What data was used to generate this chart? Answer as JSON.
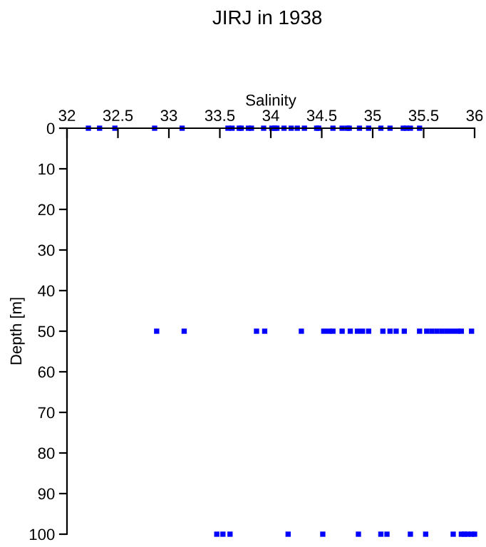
{
  "chart_data": {
    "type": "scatter",
    "title": "JIRJ in 1938",
    "xlabel": "Salinity",
    "ylabel": "Depth [m]",
    "series": [
      {
        "color": "#0000ff",
        "x": [
          32.21,
          32.32,
          32.47,
          32.86,
          33.13,
          33.58,
          33.62,
          33.69,
          33.71,
          33.78,
          33.81,
          33.93,
          34.01,
          34.04,
          34.06,
          34.13,
          34.2,
          34.26,
          34.33,
          34.45,
          34.47,
          34.61,
          34.7,
          34.75,
          34.77,
          34.87,
          34.96,
          35.08,
          35.17,
          35.3,
          35.33,
          35.37,
          35.46
        ],
        "values": [
          0,
          0,
          0,
          0,
          0,
          0,
          0,
          0,
          0,
          0,
          0,
          0,
          0,
          0,
          0,
          0,
          0,
          0,
          0,
          0,
          0,
          0,
          0,
          0,
          0,
          0,
          0,
          0,
          0,
          0,
          0,
          0,
          0
        ]
      },
      {
        "color": "#0000ff",
        "x": [
          32.88,
          33.15,
          33.86,
          33.94,
          34.3,
          34.52,
          34.57,
          34.61,
          34.7,
          34.78,
          34.85,
          34.9,
          34.96,
          35.1,
          35.17,
          35.23,
          35.31,
          35.46,
          35.53,
          35.58,
          35.63,
          35.68,
          35.73,
          35.78,
          35.83,
          35.87,
          35.97
        ],
        "values": [
          50,
          50,
          50,
          50,
          50,
          50,
          50,
          50,
          50,
          50,
          50,
          50,
          50,
          50,
          50,
          50,
          50,
          50,
          50,
          50,
          50,
          50,
          50,
          50,
          50,
          50,
          50
        ]
      },
      {
        "color": "#0000ff",
        "x": [
          33.47,
          33.53,
          33.6,
          34.17,
          34.51,
          34.86,
          35.08,
          35.14,
          35.37,
          35.52,
          35.79,
          35.87,
          35.9,
          35.93,
          35.97,
          36.0
        ],
        "values": [
          100,
          100,
          100,
          100,
          100,
          100,
          100,
          100,
          100,
          100,
          100,
          100,
          100,
          100,
          100,
          100
        ]
      }
    ],
    "marker": "square",
    "xlim": [
      32,
      36
    ],
    "xticks": [
      32,
      32.5,
      33,
      33.5,
      34,
      34.5,
      35,
      35.5,
      36
    ],
    "ylim": [
      100,
      0
    ],
    "yticks": [
      0,
      10,
      20,
      30,
      40,
      50,
      60,
      70,
      80,
      90,
      100
    ],
    "grid": false,
    "legend": false
  }
}
